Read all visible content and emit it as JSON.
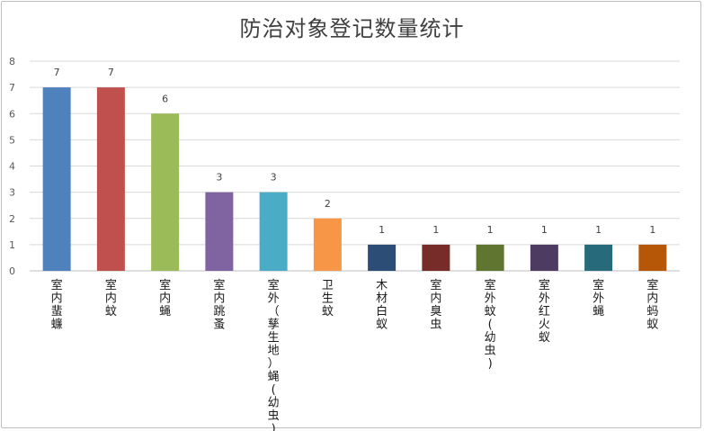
{
  "chart_data": {
    "type": "bar",
    "title": "防治对象登记数量统计",
    "xlabel": "",
    "ylabel": "",
    "ylim": [
      0,
      8
    ],
    "yticks": [
      0,
      1,
      2,
      3,
      4,
      5,
      6,
      7,
      8
    ],
    "grid": true,
    "legend": "none",
    "categories": [
      "室内蜚蠊",
      "室内蚊",
      "室内蝇",
      "室内跳蚤",
      "室外（孳生地）蝇(幼虫)",
      "卫生蚊",
      "木材白蚁",
      "室内臭虫",
      "室外蚊(幼虫)",
      "室外红火蚁",
      "室外蝇",
      "室内蚂蚁"
    ],
    "category_lines": [
      [
        "室",
        "内",
        "蜚",
        "蠊"
      ],
      [
        "室",
        "内",
        "蚊"
      ],
      [
        "室",
        "内",
        "蝇"
      ],
      [
        "室",
        "内",
        "跳",
        "蚤"
      ],
      [
        "室",
        "外",
        "（",
        "孳",
        "生",
        "地",
        "）",
        "蝇",
        "(",
        "幼",
        "虫",
        ")"
      ],
      [
        "卫",
        "生",
        "蚊"
      ],
      [
        "木",
        "材",
        "白",
        "蚁"
      ],
      [
        "室",
        "内",
        "臭",
        "虫"
      ],
      [
        "室",
        "外",
        "蚊",
        "(",
        "幼",
        "虫",
        ")"
      ],
      [
        "室",
        "外",
        "红",
        "火",
        "蚁"
      ],
      [
        "室",
        "外",
        "蝇"
      ],
      [
        "室",
        "内",
        "蚂",
        "蚁"
      ]
    ],
    "values": [
      7,
      7,
      6,
      3,
      3,
      2,
      1,
      1,
      1,
      1,
      1,
      1
    ],
    "colors": [
      "#4f81bd",
      "#c0504d",
      "#9bbb59",
      "#8064a2",
      "#4bacc6",
      "#f79646",
      "#2c4d75",
      "#772c2a",
      "#5f7530",
      "#4d3b62",
      "#276a7c",
      "#b65708"
    ]
  }
}
